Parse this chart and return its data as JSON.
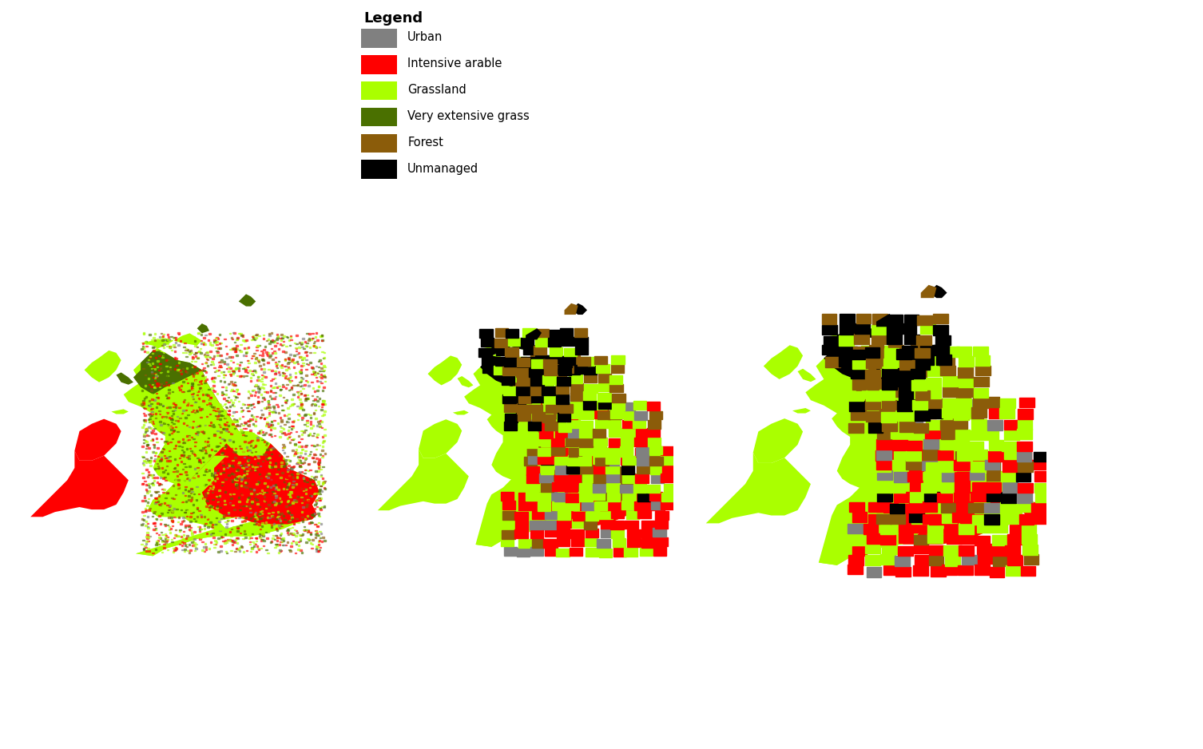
{
  "legend_title": "Legend",
  "legend_items": [
    {
      "label": "Urban",
      "color": "#808080"
    },
    {
      "label": "Intensive arable",
      "color": "#ff0000"
    },
    {
      "label": "Grassland",
      "color": "#aaff00"
    },
    {
      "label": "Very extensive grass",
      "color": "#4a7000"
    },
    {
      "label": "Forest",
      "color": "#8b5c0a"
    },
    {
      "label": "Unmanaged",
      "color": "#000000"
    }
  ],
  "background_color": "#ffffff",
  "black_bar_color": "#000000",
  "map_colors": {
    "urban": "#808080",
    "arable": "#ff0000",
    "grassland": "#aaff00",
    "veg_grass": "#4a7000",
    "forest": "#8b5c0a",
    "unmanaged": "#000000",
    "white": "#ffffff"
  }
}
